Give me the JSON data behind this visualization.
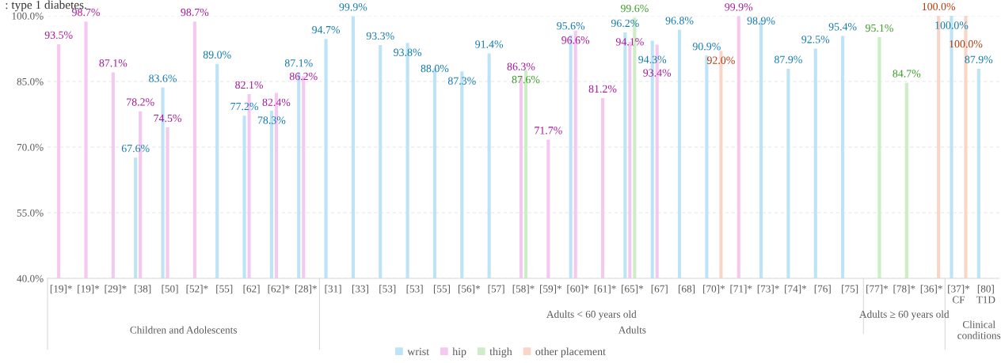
{
  "chart_data": {
    "type": "bar",
    "categories": [
      "[19]*",
      "[19]*",
      "[29]*",
      "[38]",
      "[50]",
      "[52]*",
      "[55]",
      "[62]",
      "[62]*",
      "[28]*",
      "[31]",
      "[33]",
      "[53]",
      "[53]",
      "[55]",
      "[56]*",
      "[57]",
      "[58]*",
      "[59]*",
      "[60]*",
      "[61]*",
      "[65]*",
      "[67]",
      "[68]",
      "[70]*",
      "[71]*",
      "[73]*",
      "[74]*",
      "[76]",
      "[75]",
      "[77]*",
      "[78]*",
      "[36]*",
      "[37]*\nCF",
      "[80]\nT1D"
    ],
    "series": [
      {
        "name": "wrist",
        "color": "#bde3f6",
        "values": [
          null,
          null,
          null,
          67.6,
          83.6,
          null,
          89.0,
          77.2,
          78.3,
          87.1,
          94.7,
          99.9,
          93.3,
          93.8,
          88.0,
          87.3,
          91.4,
          null,
          null,
          95.6,
          null,
          96.2,
          94.3,
          96.8,
          90.9,
          null,
          98.9,
          87.9,
          92.5,
          95.4,
          null,
          null,
          null,
          100.0,
          87.9
        ],
        "value_labels": [
          null,
          null,
          null,
          "67.6%",
          "83.6%",
          null,
          "89.0%",
          "77.2%",
          "78.3%",
          "87.1%",
          "94.7%",
          "99.9%",
          "93.3%",
          "93.8%",
          "88.0%",
          "87.3%",
          "91.4%",
          null,
          null,
          "95.6%",
          null,
          "96.2%",
          "94.3%",
          "96.8%",
          "90.9%",
          null,
          "98.9%",
          "87.9%",
          "92.5%",
          "95.4%",
          null,
          null,
          null,
          "100.0%",
          "87.9%"
        ]
      },
      {
        "name": "hip",
        "color": "#f4c8ef",
        "values": [
          93.5,
          98.7,
          87.1,
          78.2,
          74.5,
          98.7,
          null,
          82.1,
          82.4,
          86.2,
          null,
          null,
          null,
          null,
          null,
          null,
          null,
          86.3,
          71.7,
          96.6,
          81.2,
          94.1,
          93.4,
          null,
          null,
          99.9,
          null,
          null,
          null,
          null,
          null,
          null,
          null,
          null,
          null
        ],
        "value_labels": [
          "93.5%",
          "98.7%",
          "87.1%",
          "78.2%",
          "74.5%",
          "98.7%",
          null,
          "82.1%",
          "82.4%",
          "86.2%",
          null,
          null,
          null,
          null,
          null,
          null,
          null,
          "86.3%",
          "71.7%",
          "96.6%",
          "81.2%",
          "94.1%",
          "93.4%",
          null,
          null,
          "99.9%",
          null,
          null,
          null,
          null,
          null,
          null,
          null,
          null,
          null
        ]
      },
      {
        "name": "thigh",
        "color": "#cdedc6",
        "values": [
          null,
          null,
          null,
          null,
          null,
          null,
          null,
          null,
          null,
          null,
          null,
          null,
          null,
          null,
          null,
          null,
          null,
          87.6,
          null,
          null,
          null,
          99.6,
          null,
          null,
          null,
          null,
          null,
          null,
          null,
          null,
          95.1,
          84.7,
          null,
          null,
          null
        ],
        "value_labels": [
          null,
          null,
          null,
          null,
          null,
          null,
          null,
          null,
          null,
          null,
          null,
          null,
          null,
          null,
          null,
          null,
          null,
          "87.6%",
          null,
          null,
          null,
          "99.6%",
          null,
          null,
          null,
          null,
          null,
          null,
          null,
          null,
          "95.1%",
          "84.7%",
          null,
          null,
          null
        ]
      },
      {
        "name": "other placement",
        "color": "#f9d5c8",
        "values": [
          null,
          null,
          null,
          null,
          null,
          null,
          null,
          null,
          null,
          null,
          null,
          null,
          null,
          null,
          null,
          null,
          null,
          null,
          null,
          null,
          null,
          null,
          null,
          null,
          92.0,
          null,
          null,
          null,
          null,
          null,
          null,
          null,
          100.0,
          100.0,
          null
        ],
        "value_labels": [
          null,
          null,
          null,
          null,
          null,
          null,
          null,
          null,
          null,
          null,
          null,
          null,
          null,
          null,
          null,
          null,
          null,
          null,
          null,
          null,
          null,
          null,
          null,
          null,
          "92.0%",
          null,
          null,
          null,
          null,
          null,
          null,
          null,
          "100.0%",
          "100.0%",
          null
        ]
      }
    ],
    "ylim": [
      40,
      100
    ],
    "yticks": [
      {
        "value": 40,
        "label": "40.0%"
      },
      {
        "value": 55,
        "label": "55.0%"
      },
      {
        "value": 70,
        "label": "70.0%"
      },
      {
        "value": 85,
        "label": "85.0%"
      },
      {
        "value": 100,
        "label": "100.0%"
      }
    ],
    "grid": "y",
    "legend": "bottom",
    "annotations": [
      ": type 1 diabetes.",
      "Children and Adolescents",
      "Adults < 60 years old",
      "Adults ≥ 60 years old",
      "Adults",
      "Clinical\nconditions"
    ]
  }
}
